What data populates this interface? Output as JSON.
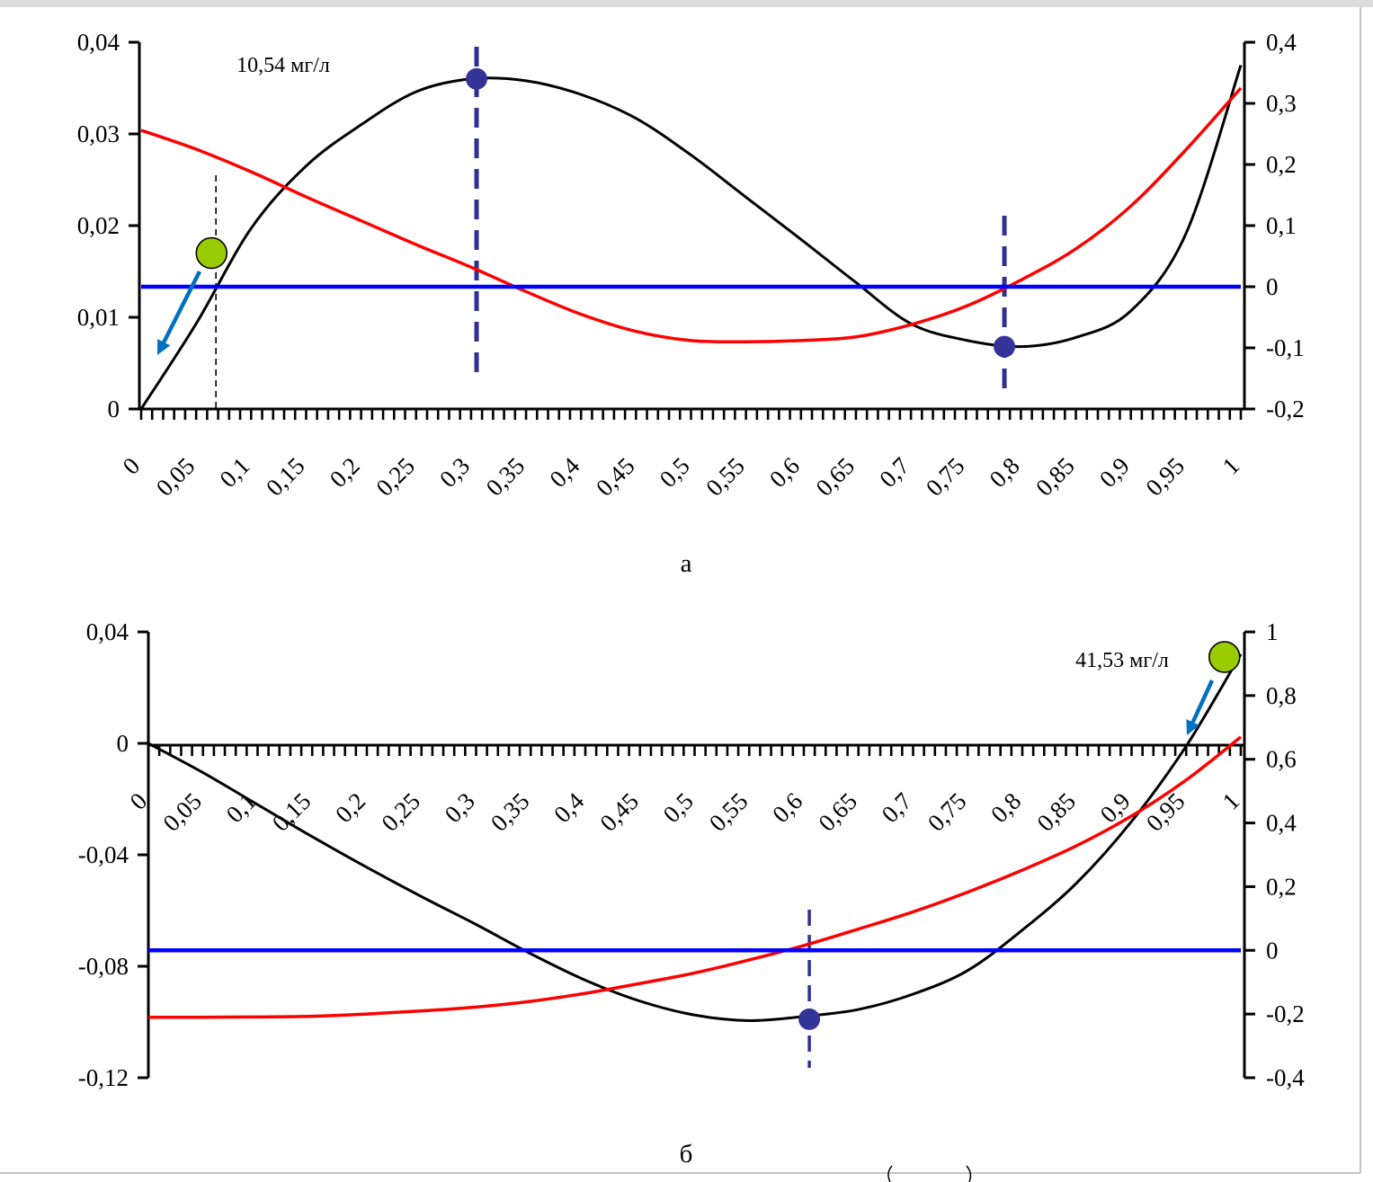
{
  "chart_data": [
    {
      "panel_label": "а",
      "type": "line",
      "x_ticks": [
        "0",
        "0,05",
        "0,1",
        "0,15",
        "0,2",
        "0,25",
        "0,3",
        "0,35",
        "0,4",
        "0,45",
        "0,5",
        "0,55",
        "0,6",
        "0,65",
        "0,7",
        "0,75",
        "0,8",
        "0,85",
        "0,9",
        "0,95",
        "1"
      ],
      "x_range": [
        0,
        1
      ],
      "left_axis": {
        "range": [
          0,
          0.04
        ],
        "ticks": [
          "0",
          "0,01",
          "0,02",
          "0,03",
          "0,04"
        ]
      },
      "right_axis": {
        "range": [
          -0.2,
          0.4
        ],
        "ticks": [
          "-0,2",
          "-0,1",
          "0",
          "0,1",
          "0,2",
          "0,3",
          "0,4"
        ]
      },
      "annotation": "10,54 мг/л",
      "colors": {
        "black": "#000000",
        "red": "#ff0000",
        "blue": "#0000ff",
        "markers": "#333399",
        "green": "#99cc00",
        "arrow": "#0070c0"
      },
      "series": [
        {
          "color": "#000000",
          "axis": "left",
          "x": [
            0,
            0.05,
            0.1,
            0.15,
            0.2,
            0.25,
            0.3,
            0.35,
            0.4,
            0.45,
            0.5,
            0.55,
            0.6,
            0.65,
            0.7,
            0.75,
            0.8,
            0.85,
            0.9,
            0.95,
            1
          ],
          "y": [
            0,
            0.0093,
            0.0197,
            0.0265,
            0.031,
            0.0346,
            0.036,
            0.0358,
            0.0343,
            0.0317,
            0.0277,
            0.0231,
            0.0185,
            0.0138,
            0.0093,
            0.0075,
            0.0068,
            0.0078,
            0.0107,
            0.0191,
            0.0375
          ]
        },
        {
          "color": "#ff0000",
          "axis": "right",
          "x": [
            0,
            0.05,
            0.1,
            0.15,
            0.2,
            0.25,
            0.3,
            0.35,
            0.4,
            0.45,
            0.5,
            0.55,
            0.6,
            0.65,
            0.7,
            0.75,
            0.8,
            0.85,
            0.9,
            0.95,
            1
          ],
          "y": [
            0.256,
            0.225,
            0.188,
            0.147,
            0.108,
            0.069,
            0.032,
            -0.008,
            -0.045,
            -0.073,
            -0.088,
            -0.09,
            -0.088,
            -0.082,
            -0.062,
            -0.032,
            0.011,
            0.062,
            0.132,
            0.224,
            0.325
          ]
        },
        {
          "color": "#0000ff",
          "axis": "right",
          "x": [
            0,
            1
          ],
          "y": [
            0,
            0
          ]
        }
      ],
      "markers": [
        {
          "kind": "extremum",
          "x": 0.305,
          "y_left": 0.036,
          "axis": "left"
        },
        {
          "kind": "extremum",
          "x": 0.785,
          "y_left": 0.0068,
          "axis": "left"
        },
        {
          "kind": "green-point",
          "x": 0.064,
          "y_left": 0.017,
          "axis": "left"
        }
      ],
      "vertical_lines": [
        {
          "x": 0.305,
          "style": "dashed-bold"
        },
        {
          "x": 0.785,
          "style": "dashed-bold"
        },
        {
          "x": 0.068,
          "style": "dashed-thin"
        }
      ]
    },
    {
      "panel_label": "б",
      "type": "line",
      "x_ticks": [
        "0",
        "0,05",
        "0,1",
        "0,15",
        "0,2",
        "0,25",
        "0,3",
        "0,35",
        "0,4",
        "0,45",
        "0,5",
        "0,55",
        "0,6",
        "0,65",
        "0,7",
        "0,75",
        "0,8",
        "0,85",
        "0,9",
        "0,95",
        "1"
      ],
      "x_range": [
        0,
        1
      ],
      "left_axis": {
        "range": [
          -0.12,
          0.04
        ],
        "ticks": [
          "-0,12",
          "-0,08",
          "-0,04",
          "0",
          "0,04"
        ]
      },
      "right_axis": {
        "range": [
          -0.4,
          1.0
        ],
        "ticks": [
          "-0,4",
          "-0,2",
          "0",
          "0,2",
          "0,4",
          "0,6",
          "0,8",
          "1"
        ]
      },
      "annotation": "41,53 мг/л",
      "series": [
        {
          "color": "#000000",
          "axis": "left",
          "x": [
            0,
            0.05,
            0.1,
            0.15,
            0.2,
            0.25,
            0.3,
            0.35,
            0.4,
            0.45,
            0.5,
            0.55,
            0.6,
            0.65,
            0.7,
            0.75,
            0.8,
            0.85,
            0.9,
            0.95,
            1
          ],
          "y": [
            0,
            -0.0105,
            -0.022,
            -0.0335,
            -0.0445,
            -0.055,
            -0.065,
            -0.0755,
            -0.085,
            -0.0925,
            -0.0975,
            -0.0995,
            -0.098,
            -0.0955,
            -0.09,
            -0.0815,
            -0.067,
            -0.05,
            -0.028,
            -0.001,
            0.032
          ]
        },
        {
          "color": "#ff0000",
          "axis": "right",
          "x": [
            0,
            0.05,
            0.1,
            0.15,
            0.2,
            0.25,
            0.3,
            0.35,
            0.4,
            0.45,
            0.5,
            0.55,
            0.6,
            0.65,
            0.7,
            0.75,
            0.8,
            0.85,
            0.9,
            0.95,
            1
          ],
          "y": [
            -0.21,
            -0.21,
            -0.209,
            -0.207,
            -0.2,
            -0.19,
            -0.178,
            -0.16,
            -0.135,
            -0.104,
            -0.071,
            -0.03,
            0.015,
            0.067,
            0.121,
            0.183,
            0.252,
            0.329,
            0.422,
            0.535,
            0.67
          ]
        },
        {
          "color": "#0000ff",
          "axis": "right",
          "x": [
            0,
            1
          ],
          "y": [
            0,
            0
          ]
        }
      ],
      "markers": [
        {
          "kind": "extremum",
          "x": 0.605,
          "y_left": -0.099,
          "axis": "left"
        },
        {
          "kind": "green-point",
          "x": 0.985,
          "y_left": 0.031,
          "axis": "left"
        }
      ],
      "vertical_lines": [
        {
          "x": 0.605,
          "style": "dashed-thin"
        }
      ]
    }
  ]
}
